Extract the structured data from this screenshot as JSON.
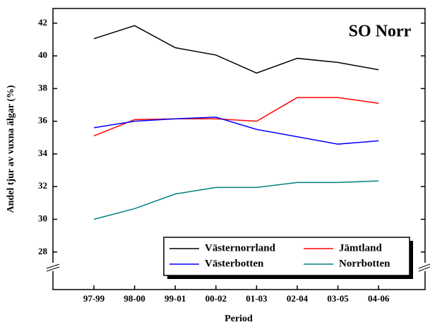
{
  "chart_data": {
    "type": "line",
    "annotation": "SO Norr",
    "x_label": "Period",
    "y_label": "Andel tjur av vuxna älgar (%)",
    "categories": [
      "97-99",
      "98-00",
      "99-01",
      "00-02",
      "01-03",
      "02-04",
      "03-05",
      "04-06"
    ],
    "series": [
      {
        "name": "Västernorrland",
        "color": "#000000",
        "values": [
          41.05,
          41.85,
          40.5,
          40.05,
          38.95,
          39.85,
          39.6,
          39.15
        ]
      },
      {
        "name": "Jämtland",
        "color": "#ff0000",
        "values": [
          35.1,
          36.1,
          36.15,
          36.15,
          36.0,
          37.45,
          37.45,
          37.1
        ]
      },
      {
        "name": "Västerbotten",
        "color": "#0000ff",
        "values": [
          35.6,
          36.0,
          36.15,
          36.25,
          35.5,
          35.05,
          34.6,
          34.8
        ]
      },
      {
        "name": "Norrbotten",
        "color": "#008080",
        "values": [
          30.0,
          30.65,
          31.55,
          31.95,
          31.95,
          32.25,
          32.25,
          32.35
        ]
      }
    ],
    "ylim": [
      25.7,
      42.9
    ],
    "yticks": [
      28,
      30,
      32,
      34,
      36,
      38,
      40,
      42
    ],
    "legend": "lower right"
  }
}
